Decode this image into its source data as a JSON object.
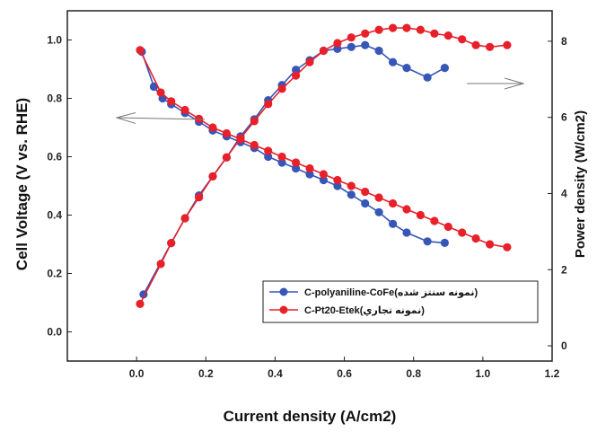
{
  "chart_data": {
    "type": "line",
    "xlabel": "Current density (A/cm2)",
    "ylabel_left": "Cell Voltage (V vs. RHE)",
    "ylabel_right": "Power density (W/cm2)",
    "xlim": [
      -0.2,
      1.2
    ],
    "ylim_left": [
      -0.1,
      1.1
    ],
    "ylim_right": [
      -0.4,
      8.8
    ],
    "x_ticks": [
      "0.0",
      "0.2",
      "0.4",
      "0.6",
      "0.8",
      "1.0",
      "1.2"
    ],
    "y_left_ticks": [
      "0.0",
      "0.2",
      "0.4",
      "0.6",
      "0.8",
      "1.0"
    ],
    "y_right_ticks": [
      "0",
      "2",
      "4",
      "6",
      "8"
    ],
    "grid": false,
    "legend_position": "bottom-right",
    "series": [
      {
        "name": "C-polyaniline-CoFe(نمونه سنتز شده)",
        "color": "#3656b8",
        "voltage": {
          "axis": "left",
          "x": [
            0.015,
            0.05,
            0.075,
            0.1,
            0.14,
            0.18,
            0.22,
            0.26,
            0.3,
            0.34,
            0.38,
            0.42,
            0.46,
            0.5,
            0.54,
            0.58,
            0.62,
            0.66,
            0.7,
            0.74,
            0.78,
            0.84,
            0.89
          ],
          "y": [
            0.96,
            0.84,
            0.8,
            0.78,
            0.75,
            0.72,
            0.69,
            0.67,
            0.65,
            0.63,
            0.6,
            0.58,
            0.56,
            0.54,
            0.52,
            0.5,
            0.47,
            0.44,
            0.41,
            0.37,
            0.34,
            0.31,
            0.305
          ]
        },
        "power": {
          "axis": "right",
          "x": [
            0.02,
            0.1,
            0.14,
            0.18,
            0.22,
            0.26,
            0.3,
            0.34,
            0.38,
            0.42,
            0.46,
            0.5,
            0.54,
            0.58,
            0.62,
            0.66,
            0.7,
            0.74,
            0.78,
            0.84,
            0.89
          ],
          "y": [
            1.35,
            2.7,
            3.35,
            3.95,
            4.45,
            4.95,
            5.5,
            5.95,
            6.45,
            6.85,
            7.25,
            7.5,
            7.75,
            7.8,
            7.85,
            7.9,
            7.75,
            7.45,
            7.3,
            7.05,
            7.3
          ]
        }
      },
      {
        "name": "C-Pt20-Etek(نمونه تجاري)",
        "color": "#e8202a",
        "voltage": {
          "axis": "left",
          "x": [
            0.01,
            0.07,
            0.1,
            0.14,
            0.18,
            0.22,
            0.26,
            0.3,
            0.34,
            0.38,
            0.42,
            0.46,
            0.5,
            0.54,
            0.58,
            0.62,
            0.66,
            0.7,
            0.74,
            0.78,
            0.82,
            0.86,
            0.9,
            0.94,
            0.98,
            1.02,
            1.07
          ],
          "y": [
            0.965,
            0.82,
            0.79,
            0.76,
            0.73,
            0.7,
            0.68,
            0.66,
            0.64,
            0.62,
            0.6,
            0.58,
            0.56,
            0.54,
            0.52,
            0.5,
            0.48,
            0.46,
            0.44,
            0.42,
            0.4,
            0.38,
            0.36,
            0.34,
            0.32,
            0.3,
            0.29
          ]
        },
        "power": {
          "axis": "right",
          "x": [
            0.01,
            0.07,
            0.1,
            0.14,
            0.18,
            0.22,
            0.26,
            0.3,
            0.34,
            0.38,
            0.42,
            0.46,
            0.5,
            0.54,
            0.58,
            0.62,
            0.66,
            0.7,
            0.74,
            0.78,
            0.82,
            0.86,
            0.9,
            0.94,
            0.98,
            1.02,
            1.07
          ],
          "y": [
            1.1,
            2.15,
            2.7,
            3.35,
            3.9,
            4.45,
            4.95,
            5.45,
            5.9,
            6.35,
            6.75,
            7.1,
            7.45,
            7.75,
            7.95,
            8.1,
            8.2,
            8.3,
            8.35,
            8.35,
            8.3,
            8.2,
            8.15,
            8.05,
            7.9,
            7.85,
            7.9
          ]
        }
      }
    ]
  }
}
